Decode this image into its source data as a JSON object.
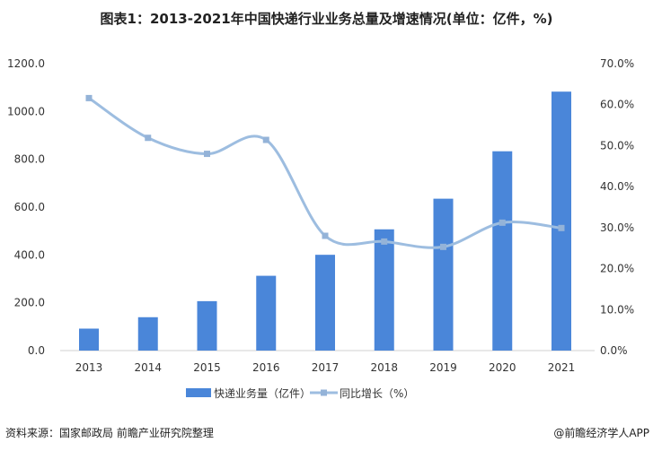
{
  "chart_data": {
    "type": "bar",
    "title": "图表1：2013-2021年中国快递行业业务总量及增速情况(单位：亿件，%)",
    "categories": [
      "2013",
      "2014",
      "2015",
      "2016",
      "2017",
      "2018",
      "2019",
      "2020",
      "2021"
    ],
    "series": [
      {
        "name": "快递业务量（亿件）",
        "type": "bar",
        "axis": "left",
        "color": "#4a86d9",
        "values": [
          91.9,
          139.6,
          206.7,
          312.8,
          400.6,
          507.1,
          635.2,
          833.6,
          1083.0
        ]
      },
      {
        "name": "同比增长（%）",
        "type": "line",
        "axis": "right",
        "color": "#9dbde0",
        "smooth": true,
        "values": [
          61.6,
          51.9,
          48.0,
          51.4,
          28.0,
          26.6,
          25.3,
          31.2,
          29.9
        ]
      }
    ],
    "left_axis": {
      "range": [
        0,
        1200
      ],
      "ticks": [
        "0.0",
        "200.0",
        "400.0",
        "600.0",
        "800.0",
        "1000.0",
        "1200.0"
      ]
    },
    "right_axis": {
      "range": [
        0,
        70
      ],
      "ticks": [
        "0.0%",
        "10.0%",
        "20.0%",
        "30.0%",
        "40.0%",
        "50.0%",
        "60.0%",
        "70.0%"
      ]
    },
    "grid": false,
    "legend": "bottom"
  },
  "footer": {
    "source": "资料来源：国家邮政局 前瞻产业研究院整理",
    "credit": "@前瞻经济学人APP"
  }
}
